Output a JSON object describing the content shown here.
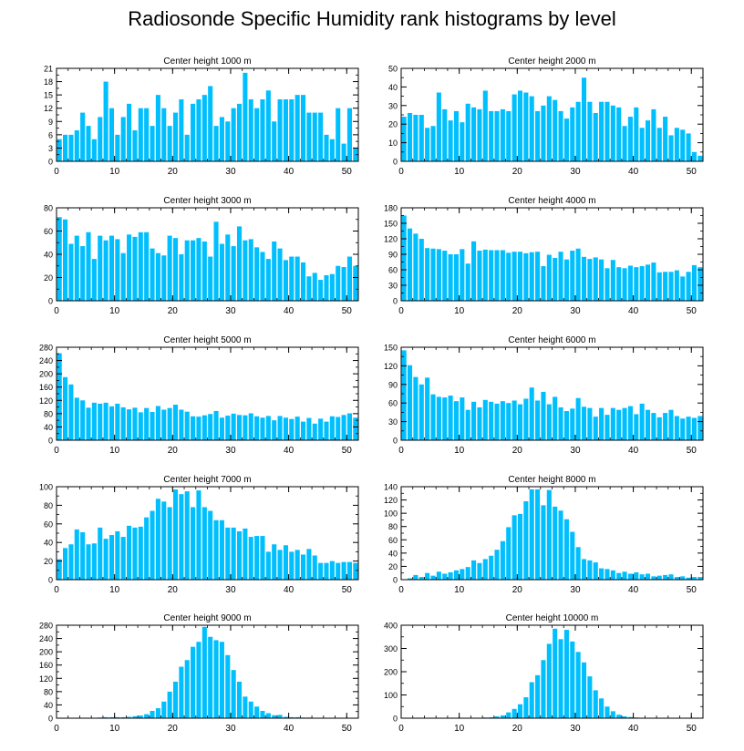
{
  "title": "Radiosonde Specific Humidity rank histograms by level",
  "bar_color": "#00bfff",
  "chart_data": [
    {
      "type": "bar",
      "title": "Center height 1000 m",
      "ylim": [
        0,
        21
      ],
      "yticks": [
        0,
        3,
        6,
        9,
        12,
        15,
        18,
        21
      ],
      "xticks": [
        0,
        10,
        20,
        30,
        40,
        50
      ],
      "values": [
        5,
        6,
        6,
        7,
        11,
        8,
        5,
        10,
        18,
        12,
        6,
        10,
        13,
        7,
        12,
        12,
        8,
        15,
        12,
        8,
        11,
        14,
        6,
        13,
        14,
        15,
        17,
        8,
        10,
        9,
        12,
        13,
        20,
        14,
        12,
        14,
        16,
        9,
        14,
        14,
        14,
        15,
        15,
        11,
        11,
        11,
        6,
        5,
        12,
        4,
        12,
        3
      ]
    },
    {
      "type": "bar",
      "title": "Center height 2000 m",
      "ylim": [
        0,
        50
      ],
      "yticks": [
        0,
        10,
        20,
        30,
        40,
        50
      ],
      "xticks": [
        0,
        10,
        20,
        30,
        40,
        50
      ],
      "values": [
        24,
        26,
        25,
        25,
        18,
        19,
        37,
        28,
        22,
        27,
        21,
        31,
        29,
        28,
        38,
        27,
        27,
        28,
        27,
        36,
        38,
        37,
        35,
        27,
        30,
        35,
        33,
        27,
        23,
        29,
        32,
        45,
        32,
        26,
        32,
        32,
        30,
        29,
        19,
        24,
        29,
        18,
        22,
        28,
        18,
        24,
        14,
        18,
        17,
        15,
        5,
        3
      ]
    },
    {
      "type": "bar",
      "title": "Center height 3000 m",
      "ylim": [
        0,
        80
      ],
      "yticks": [
        0,
        20,
        40,
        60,
        80
      ],
      "xticks": [
        0,
        10,
        20,
        30,
        40,
        50
      ],
      "values": [
        72,
        70,
        49,
        56,
        47,
        59,
        36,
        56,
        52,
        56,
        53,
        41,
        57,
        55,
        59,
        59,
        45,
        41,
        39,
        56,
        54,
        40,
        52,
        52,
        54,
        51,
        38,
        68,
        49,
        57,
        47,
        64,
        52,
        53,
        46,
        42,
        36,
        51,
        45,
        35,
        38,
        38,
        33,
        21,
        24,
        18,
        22,
        23,
        30,
        29,
        38,
        30
      ]
    },
    {
      "type": "bar",
      "title": "Center height 4000 m",
      "ylim": [
        0,
        180
      ],
      "yticks": [
        0,
        30,
        60,
        90,
        120,
        150,
        180
      ],
      "xticks": [
        0,
        10,
        20,
        30,
        40,
        50
      ],
      "values": [
        165,
        140,
        130,
        120,
        102,
        101,
        100,
        97,
        90,
        90,
        100,
        72,
        115,
        97,
        99,
        98,
        98,
        98,
        93,
        95,
        95,
        92,
        94,
        95,
        67,
        89,
        83,
        95,
        80,
        97,
        101,
        85,
        81,
        84,
        80,
        63,
        79,
        65,
        63,
        68,
        65,
        67,
        70,
        74,
        55,
        56,
        56,
        59,
        47,
        56,
        69,
        65
      ]
    },
    {
      "type": "bar",
      "title": "Center height 5000 m",
      "ylim": [
        0,
        280
      ],
      "yticks": [
        0,
        40,
        80,
        120,
        160,
        200,
        240,
        280
      ],
      "xticks": [
        0,
        10,
        20,
        30,
        40,
        50
      ],
      "values": [
        262,
        190,
        168,
        128,
        120,
        98,
        113,
        110,
        113,
        102,
        110,
        99,
        93,
        98,
        84,
        97,
        85,
        103,
        92,
        97,
        107,
        92,
        86,
        72,
        71,
        75,
        79,
        88,
        68,
        74,
        80,
        76,
        75,
        81,
        72,
        68,
        73,
        60,
        73,
        68,
        64,
        71,
        56,
        67,
        50,
        65,
        56,
        72,
        70,
        76,
        81,
        68
      ]
    },
    {
      "type": "bar",
      "title": "Center height 6000 m",
      "ylim": [
        0,
        150
      ],
      "yticks": [
        0,
        30,
        60,
        90,
        120,
        150
      ],
      "xticks": [
        0,
        10,
        20,
        30,
        40,
        50
      ],
      "values": [
        145,
        121,
        102,
        90,
        101,
        74,
        70,
        69,
        72,
        63,
        69,
        49,
        62,
        53,
        65,
        62,
        59,
        63,
        60,
        64,
        58,
        67,
        85,
        64,
        78,
        58,
        70,
        53,
        47,
        51,
        68,
        54,
        52,
        38,
        52,
        41,
        52,
        49,
        52,
        55,
        42,
        59,
        49,
        44,
        37,
        44,
        49,
        39,
        35,
        38,
        36,
        39
      ]
    },
    {
      "type": "bar",
      "title": "Center height 7000 m",
      "ylim": [
        0,
        100
      ],
      "yticks": [
        0,
        20,
        40,
        60,
        80,
        100
      ],
      "xticks": [
        0,
        10,
        20,
        30,
        40,
        50
      ],
      "values": [
        22,
        34,
        38,
        54,
        51,
        38,
        39,
        56,
        44,
        48,
        52,
        46,
        58,
        56,
        57,
        67,
        74,
        87,
        84,
        78,
        97,
        92,
        95,
        78,
        96,
        78,
        74,
        64,
        64,
        56,
        56,
        52,
        55,
        46,
        47,
        47,
        30,
        38,
        32,
        37,
        30,
        32,
        27,
        33,
        26,
        18,
        18,
        20,
        18,
        19,
        19,
        18
      ]
    },
    {
      "type": "bar",
      "title": "Center height 8000 m",
      "ylim": [
        0,
        140
      ],
      "yticks": [
        0,
        20,
        40,
        60,
        80,
        100,
        120,
        140
      ],
      "xticks": [
        0,
        10,
        20,
        30,
        40,
        50
      ],
      "values": [
        0,
        2,
        7,
        4,
        10,
        6,
        12,
        9,
        11,
        14,
        16,
        19,
        29,
        25,
        31,
        36,
        45,
        58,
        79,
        97,
        99,
        118,
        136,
        136,
        112,
        135,
        110,
        104,
        91,
        72,
        49,
        31,
        29,
        26,
        17,
        16,
        14,
        10,
        12,
        9,
        11,
        8,
        9,
        5,
        6,
        7,
        8,
        4,
        5,
        3,
        4,
        4
      ]
    },
    {
      "type": "bar",
      "title": "Center height 9000 m",
      "ylim": [
        0,
        280
      ],
      "yticks": [
        0,
        40,
        80,
        120,
        160,
        200,
        240,
        280
      ],
      "xticks": [
        0,
        10,
        20,
        30,
        40,
        50
      ],
      "values": [
        0,
        0,
        0,
        0,
        0,
        0,
        1,
        2,
        3,
        3,
        3,
        3,
        4,
        6,
        8,
        12,
        22,
        30,
        50,
        80,
        110,
        155,
        175,
        215,
        230,
        275,
        245,
        235,
        230,
        190,
        145,
        110,
        65,
        50,
        35,
        22,
        15,
        9,
        10,
        4,
        3,
        3,
        2,
        2,
        1,
        1,
        0,
        0,
        0,
        0,
        0,
        0
      ]
    },
    {
      "type": "bar",
      "title": "Center height 10000 m",
      "ylim": [
        0,
        400
      ],
      "yticks": [
        0,
        100,
        200,
        300,
        400
      ],
      "xticks": [
        0,
        10,
        20,
        30,
        40,
        50
      ],
      "values": [
        0,
        0,
        0,
        0,
        0,
        0,
        0,
        0,
        0,
        0,
        0,
        1,
        1,
        2,
        3,
        4,
        8,
        12,
        25,
        40,
        60,
        90,
        155,
        185,
        250,
        320,
        385,
        340,
        380,
        330,
        285,
        240,
        180,
        120,
        85,
        50,
        30,
        15,
        8,
        5,
        3,
        2,
        1,
        1,
        0,
        0,
        0,
        0,
        0,
        0,
        0,
        0
      ]
    }
  ]
}
